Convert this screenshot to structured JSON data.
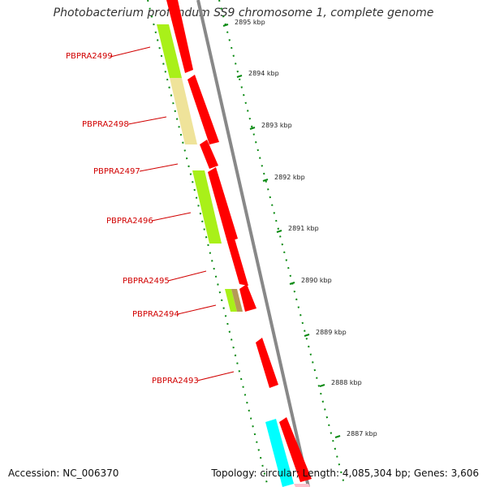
{
  "title": "Photobacterium profundum SS9 chromosome 1, complete genome",
  "footer": {
    "accession": "Accession: NC_006370",
    "topology": "Topology: circular; Length: 4,085,304 bp; Genes: 3,606"
  },
  "colors": {
    "red": "#ff0000",
    "lime": "#a9f019",
    "khaki": "#efe39a",
    "olive": "#b59b56",
    "cyan": "#00ffff",
    "pink": "#ffc0cb",
    "label": "#d10000",
    "green_dots": "#0a8a12",
    "gray_track": "#888888"
  },
  "genes": [
    {
      "name": "PBPRA2499"
    },
    {
      "name": "PBPRA2498"
    },
    {
      "name": "PBPRA2497"
    },
    {
      "name": "PBPRA2496"
    },
    {
      "name": "PBPRA2495"
    },
    {
      "name": "PBPRA2494"
    },
    {
      "name": "PBPRA2493"
    }
  ],
  "ticks": [
    {
      "label": "2895 kbp"
    },
    {
      "label": "2894 kbp"
    },
    {
      "label": "2893 kbp"
    },
    {
      "label": "2892 kbp"
    },
    {
      "label": "2891 kbp"
    },
    {
      "label": "2890 kbp"
    },
    {
      "label": "2889 kbp"
    },
    {
      "label": "2888 kbp"
    },
    {
      "label": "2887 kbp"
    }
  ]
}
